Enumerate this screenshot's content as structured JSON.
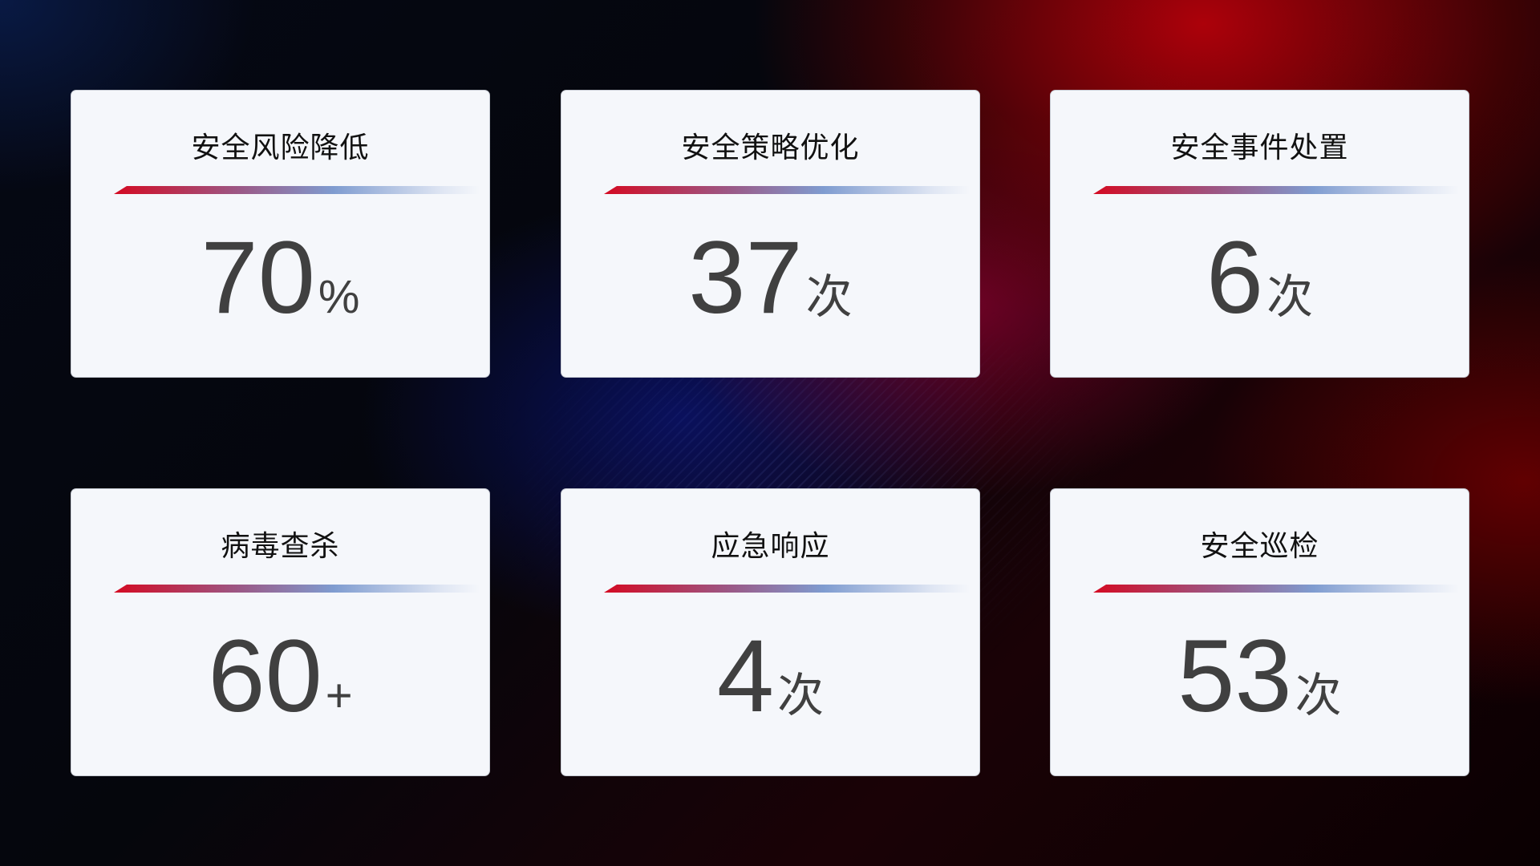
{
  "cards": [
    {
      "title": "安全风险降低",
      "value": "70",
      "unit": "%"
    },
    {
      "title": "安全策略优化",
      "value": "37",
      "unit": "次"
    },
    {
      "title": "安全事件处置",
      "value": "6",
      "unit": "次"
    },
    {
      "title": "病毒查杀",
      "value": "60",
      "unit": "+"
    },
    {
      "title": "应急响应",
      "value": "4",
      "unit": "次"
    },
    {
      "title": "安全巡检",
      "value": "53",
      "unit": "次"
    }
  ],
  "colors": {
    "accent_red": "#d40a22",
    "accent_blue": "#7f9cd0",
    "card_bg": "#f5f7fb",
    "value_text": "#404040"
  }
}
